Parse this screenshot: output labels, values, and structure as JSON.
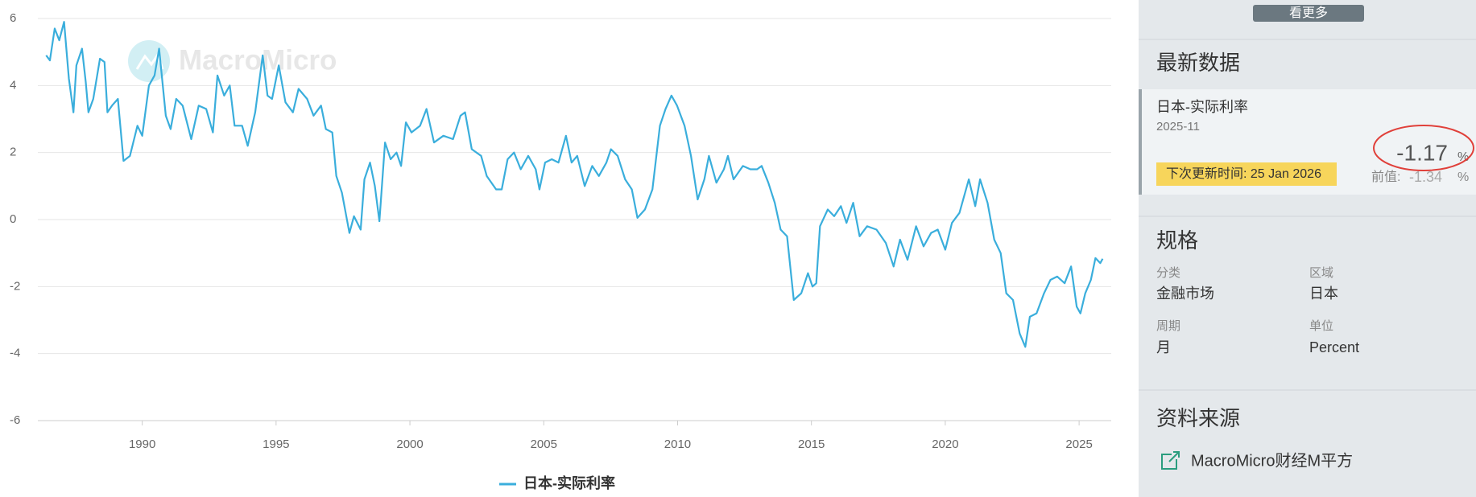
{
  "chart_data": {
    "type": "line",
    "x": [
      1986.41,
      1986.55,
      1986.73,
      1986.9,
      1987.08,
      1987.26,
      1987.43,
      1987.54,
      1987.75,
      1987.89,
      1987.99,
      1988.17,
      1988.42,
      1988.59,
      1988.7,
      1988.87,
      1989.09,
      1989.3,
      1989.54,
      1989.82,
      1990,
      1990.25,
      1990.46,
      1990.63,
      1990.88,
      1991.06,
      1991.27,
      1991.51,
      1991.83,
      1992.11,
      1992.39,
      1992.64,
      1992.81,
      1993.06,
      1993.27,
      1993.45,
      1993.73,
      1993.94,
      1994.22,
      1994.5,
      1994.68,
      1994.85,
      1995.1,
      1995.35,
      1995.63,
      1995.84,
      1996.16,
      1996.4,
      1996.68,
      1996.86,
      1997.1,
      1997.25,
      1997.46,
      1997.74,
      1997.91,
      1998.16,
      1998.3,
      1998.51,
      1998.69,
      1998.86,
      1999.07,
      1999.28,
      1999.5,
      1999.67,
      1999.85,
      2000.06,
      2000.38,
      2000.62,
      2000.9,
      2001.25,
      2001.61,
      2001.89,
      2002.06,
      2002.31,
      2002.66,
      2002.87,
      2003.22,
      2003.43,
      2003.65,
      2003.89,
      2004.14,
      2004.42,
      2004.7,
      2004.84,
      2005.05,
      2005.3,
      2005.55,
      2005.83,
      2006.04,
      2006.25,
      2006.53,
      2006.81,
      2007.06,
      2007.34,
      2007.51,
      2007.76,
      2008.04,
      2008.29,
      2008.5,
      2008.78,
      2009.06,
      2009.34,
      2009.55,
      2009.77,
      2009.98,
      2010.26,
      2010.5,
      2010.75,
      2011,
      2011.17,
      2011.45,
      2011.73,
      2011.88,
      2012.09,
      2012.44,
      2012.72,
      2012.97,
      2013.14,
      2013.39,
      2013.63,
      2013.85,
      2014.09,
      2014.34,
      2014.62,
      2014.87,
      2015.04,
      2015.18,
      2015.32,
      2015.61,
      2015.85,
      2016.1,
      2016.31,
      2016.56,
      2016.8,
      2017.08,
      2017.43,
      2017.78,
      2018.07,
      2018.31,
      2018.59,
      2018.91,
      2019.19,
      2019.47,
      2019.72,
      2020,
      2020.25,
      2020.53,
      2020.88,
      2021.12,
      2021.3,
      2021.58,
      2021.83,
      2022.07,
      2022.28,
      2022.53,
      2022.78,
      2022.99,
      2023.16,
      2023.41,
      2023.69,
      2023.93,
      2024.18,
      2024.46,
      2024.7,
      2024.91,
      2025.05,
      2025.23,
      2025.44,
      2025.61,
      2025.79,
      2025.88
    ],
    "series": [
      {
        "name": "日本-实际利率",
        "color": "#3aaedc",
        "values": [
          4.9,
          4.75,
          5.7,
          5.35,
          5.9,
          4.2,
          3.2,
          4.6,
          5.1,
          4.1,
          3.2,
          3.6,
          4.8,
          4.7,
          3.2,
          3.4,
          3.6,
          1.75,
          1.9,
          2.8,
          2.5,
          4,
          4.3,
          5.1,
          3.1,
          2.7,
          3.6,
          3.4,
          2.4,
          3.4,
          3.3,
          2.6,
          4.3,
          3.7,
          4,
          2.8,
          2.8,
          2.2,
          3.2,
          4.9,
          3.7,
          3.6,
          4.6,
          3.5,
          3.2,
          3.9,
          3.6,
          3.1,
          3.4,
          2.7,
          2.6,
          1.3,
          0.8,
          -0.4,
          0.1,
          -0.3,
          1.2,
          1.7,
          1,
          -0.05,
          2.3,
          1.8,
          2,
          1.6,
          2.9,
          2.6,
          2.8,
          3.3,
          2.3,
          2.5,
          2.4,
          3.1,
          3.2,
          2.1,
          1.9,
          1.3,
          0.9,
          0.9,
          1.8,
          2,
          1.5,
          1.9,
          1.5,
          0.9,
          1.7,
          1.8,
          1.7,
          2.5,
          1.7,
          1.9,
          1,
          1.6,
          1.3,
          1.7,
          2.1,
          1.9,
          1.2,
          0.9,
          0.05,
          0.3,
          0.9,
          2.8,
          3.3,
          3.7,
          3.4,
          2.8,
          1.9,
          0.6,
          1.2,
          1.9,
          1.1,
          1.5,
          1.9,
          1.2,
          1.6,
          1.5,
          1.5,
          1.6,
          1.1,
          0.5,
          -0.3,
          -0.5,
          -2.4,
          -2.2,
          -1.6,
          -2,
          -1.9,
          -0.2,
          0.3,
          0.1,
          0.4,
          -0.1,
          0.5,
          -0.5,
          -0.2,
          -0.3,
          -0.7,
          -1.4,
          -0.6,
          -1.2,
          -0.2,
          -0.8,
          -0.4,
          -0.3,
          -0.9,
          -0.1,
          0.2,
          1.2,
          0.4,
          1.2,
          0.5,
          -0.6,
          -1,
          -2.2,
          -2.4,
          -3.4,
          -3.8,
          -2.9,
          -2.8,
          -2.2,
          -1.8,
          -1.7,
          -1.9,
          -1.4,
          -2.6,
          -2.8,
          -2.2,
          -1.8,
          -1.15,
          -1.3,
          -1.17
        ]
      }
    ],
    "xlim": [
      1986.1,
      2026.2
    ],
    "ylim": [
      -6,
      6
    ],
    "xticks": [
      1990,
      1995,
      2000,
      2005,
      2010,
      2015,
      2020,
      2025
    ],
    "yticks": [
      -6,
      -4,
      -2,
      0,
      2,
      4,
      6
    ],
    "grid": true,
    "legend": "bottom",
    "watermark": "MacroMicro"
  },
  "sidebar": {
    "more_button": "看更多",
    "latest": {
      "heading": "最新数据",
      "name": "日本-实际利率",
      "period": "2025-11",
      "value": "-1.17",
      "unit": "%",
      "next_update": "下次更新时间: 25 Jan 2026",
      "previous_label": "前值:",
      "previous_value": "-1.34",
      "previous_unit": "%"
    },
    "spec": {
      "heading": "规格",
      "items": [
        {
          "label": "分类",
          "value": "金融市场"
        },
        {
          "label": "区域",
          "value": "日本"
        },
        {
          "label": "周期",
          "value": "月"
        },
        {
          "label": "单位",
          "value": "Percent"
        }
      ]
    },
    "source": {
      "heading": "资料来源",
      "link": "MacroMicro财经M平方"
    }
  }
}
